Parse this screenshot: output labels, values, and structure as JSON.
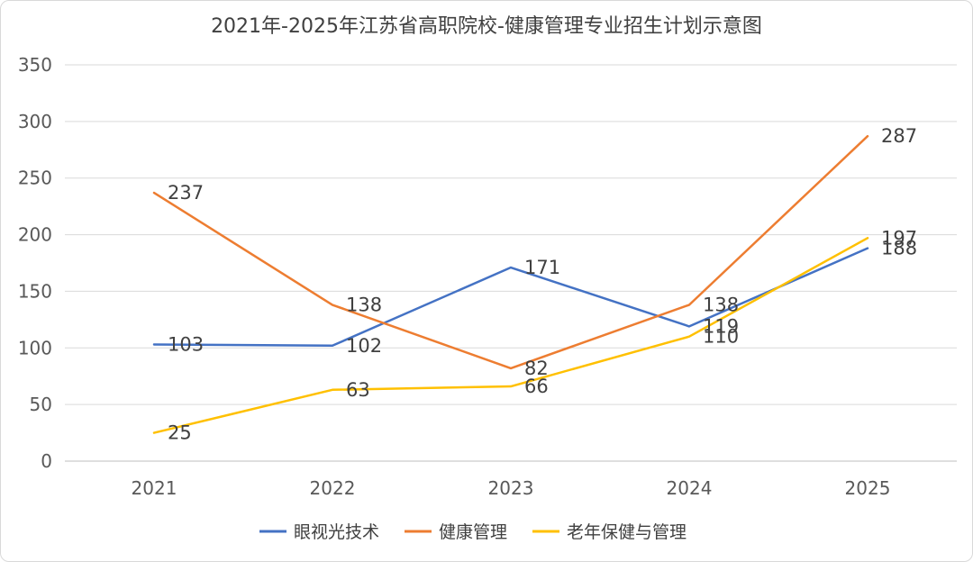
{
  "chart_data": {
    "type": "line",
    "title": "2021年-2025年江苏省高职院校-健康管理专业招生计划示意图",
    "categories": [
      "2021",
      "2022",
      "2023",
      "2024",
      "2025"
    ],
    "y_ticks": [
      "0",
      "50",
      "100",
      "150",
      "200",
      "250",
      "300",
      "350"
    ],
    "ylim": [
      0,
      350
    ],
    "grid": true,
    "legend_position": "bottom",
    "series": [
      {
        "name": "眼视光技术",
        "color": "#4472c4",
        "values": [
          103,
          102,
          171,
          119,
          188
        ]
      },
      {
        "name": "健康管理",
        "color": "#ed7d31",
        "values": [
          237,
          138,
          82,
          138,
          287
        ]
      },
      {
        "name": "老年保健与管理",
        "color": "#ffc000",
        "values": [
          25,
          63,
          66,
          110,
          197
        ]
      }
    ]
  }
}
